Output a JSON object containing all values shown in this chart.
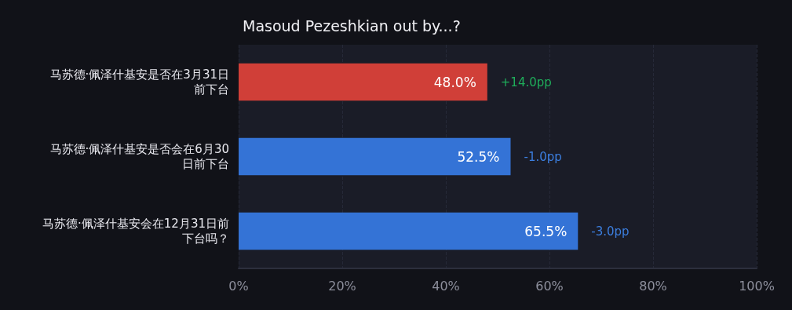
{
  "chart_data": {
    "type": "bar",
    "orientation": "horizontal",
    "title": "Masoud Pezeshkian out by...?",
    "categories": [
      "马苏德·佩泽什基安是否在3月31日前下台",
      "马苏德·佩泽什基安是否会在6月30日前下台",
      "马苏德·佩泽什基安会在12月31日前下台吗？"
    ],
    "values": [
      48.0,
      52.5,
      65.5
    ],
    "colors": [
      "#d03f38",
      "#3473d6",
      "#3473d6"
    ],
    "value_labels": [
      "48.0%",
      "52.5%",
      "65.5%"
    ],
    "xlim": [
      0,
      100
    ],
    "xticks": [
      {
        "value": 0,
        "label": "0%"
      },
      {
        "value": 20,
        "label": "20%"
      },
      {
        "value": 40,
        "label": "40%"
      },
      {
        "value": 60,
        "label": "60%"
      },
      {
        "value": 80,
        "label": "80%"
      },
      {
        "value": 100,
        "label": "100%"
      }
    ],
    "annotations": [
      {
        "text": "+14.0pp",
        "x": 48.0,
        "y": "马苏德·佩泽什基安是否在3月31日前下台"
      },
      {
        "text": "-1.0pp",
        "x": 52.5,
        "y": "马苏德·佩泽什基安是否会在6月30日前下台"
      },
      {
        "text": "-3.0pp",
        "x": 65.5,
        "y": "马苏德·佩泽什基安会在12月31日前下台吗？"
      }
    ],
    "grid": "x"
  }
}
